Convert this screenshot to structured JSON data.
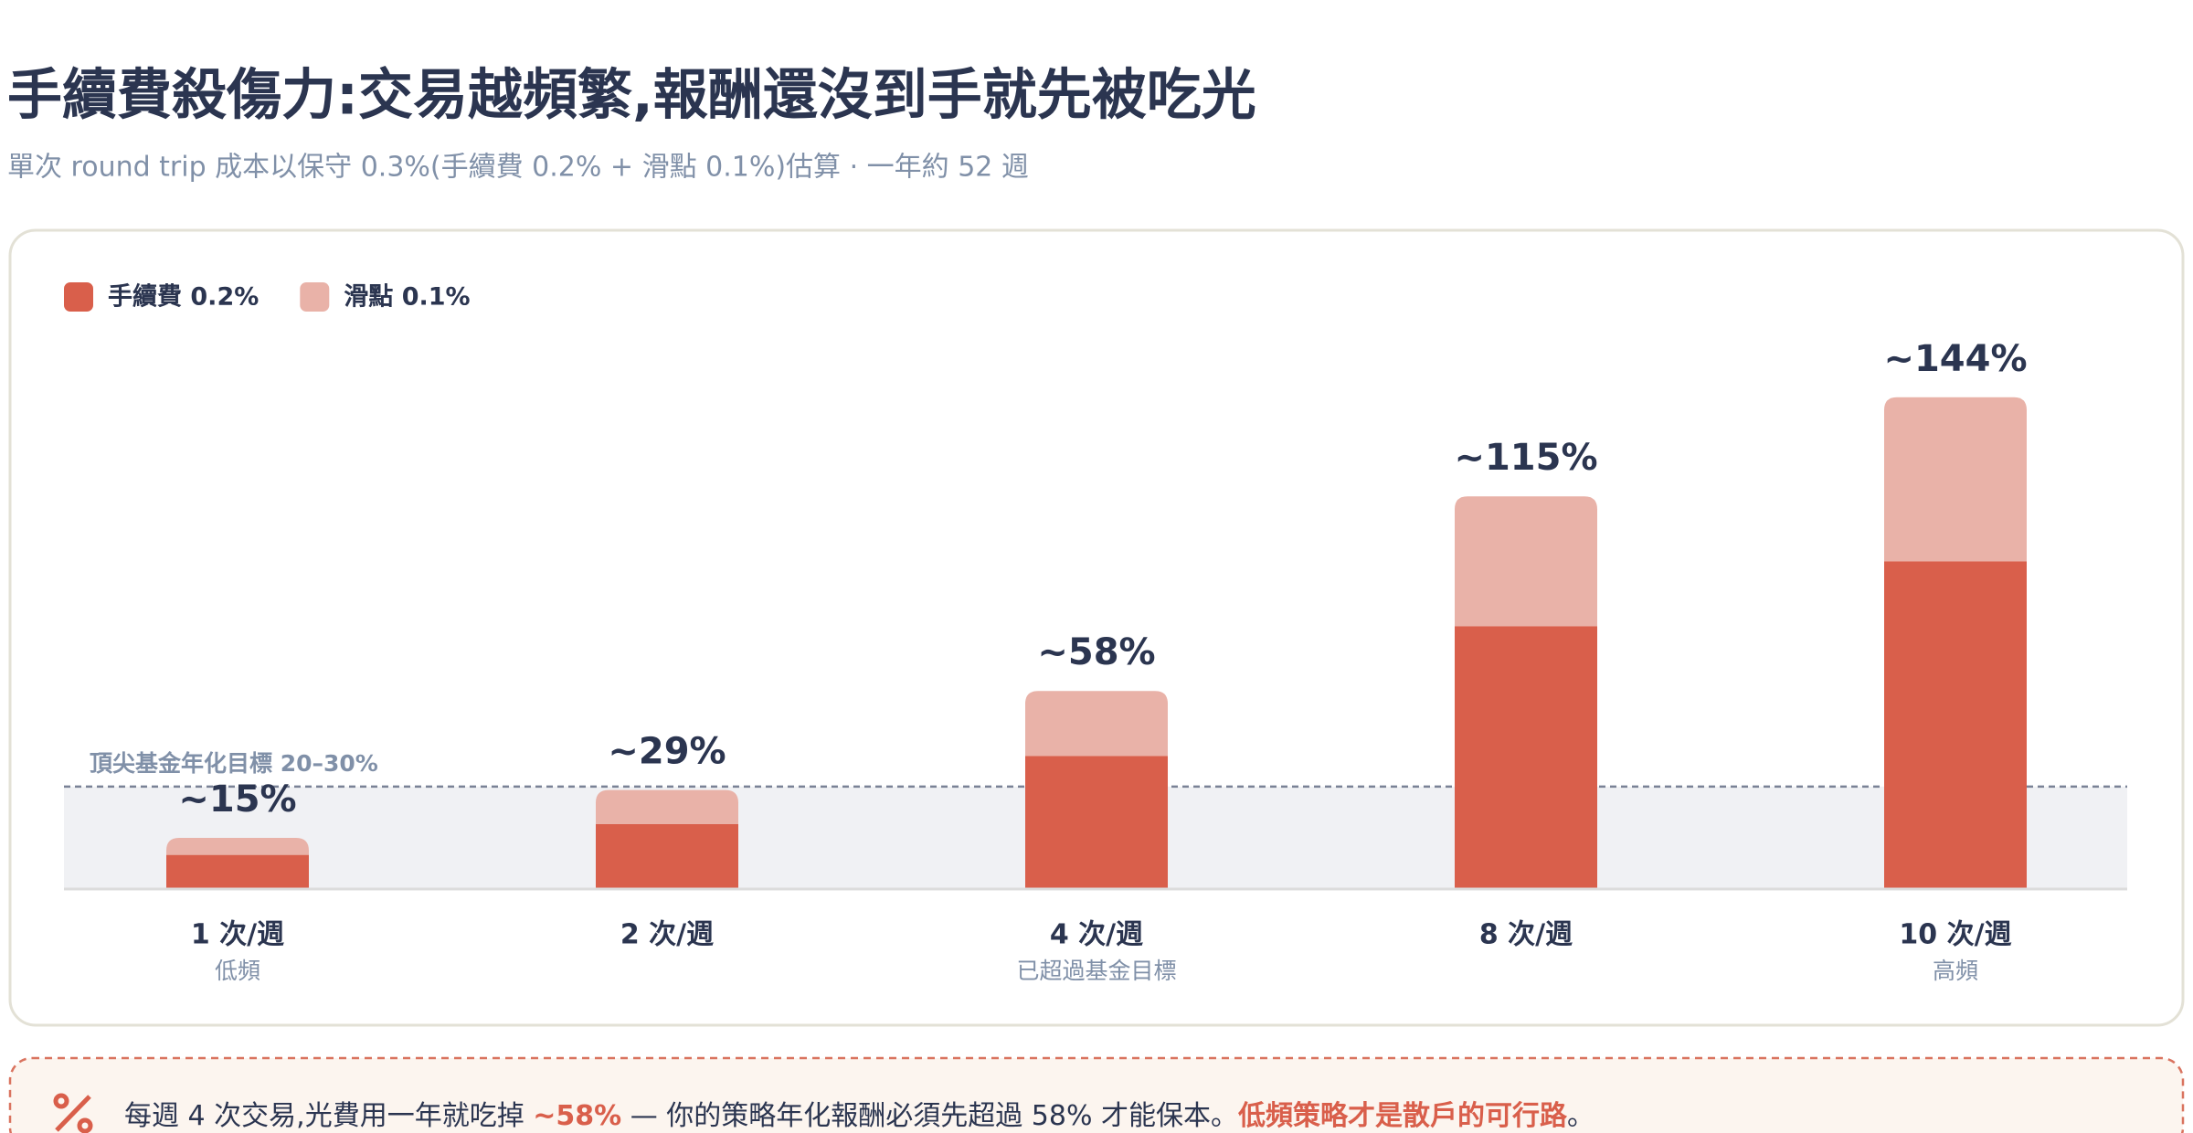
{
  "chart_data": {
    "type": "stacked-bar",
    "title": "手續費殺傷力:交易越頻繁,報酬還沒到手就先被吃光",
    "subtitle": "單次 round trip 成本以保守 0.3%(手續費 0.2% + 滑點 0.1%)估算 · 一年約 52 週",
    "categories": [
      "1 次/週",
      "2 次/週",
      "4 次/週",
      "8 次/週",
      "10 次/週"
    ],
    "category_notes": [
      "低頻",
      null,
      "已超過基金目標",
      null,
      "高頻"
    ],
    "series": [
      {
        "name": "手續費 0.2%",
        "color": "#d95f4b",
        "values": [
          10,
          19,
          39,
          77,
          96
        ]
      },
      {
        "name": "滑點 0.1%",
        "color": "#e9b2a8",
        "values": [
          5,
          10,
          19,
          38,
          48
        ]
      }
    ],
    "totals": [
      15,
      29,
      58,
      115,
      144
    ],
    "total_labels": [
      "~15%",
      "~29%",
      "~58%",
      "~115%",
      "~144%"
    ],
    "target_band": {
      "label": "頂尖基金年化目標 20–30%",
      "value": 30
    },
    "ylim": [
      0,
      160
    ],
    "legend": "top-left",
    "footnote": [
      "每週 4 次交易,光費用一年就吃掉 ",
      "~58%",
      " — 你的策略年化報酬必須先超過 58% 才能保本。",
      "低頻策略才是散戶的可行路",
      "。"
    ]
  }
}
